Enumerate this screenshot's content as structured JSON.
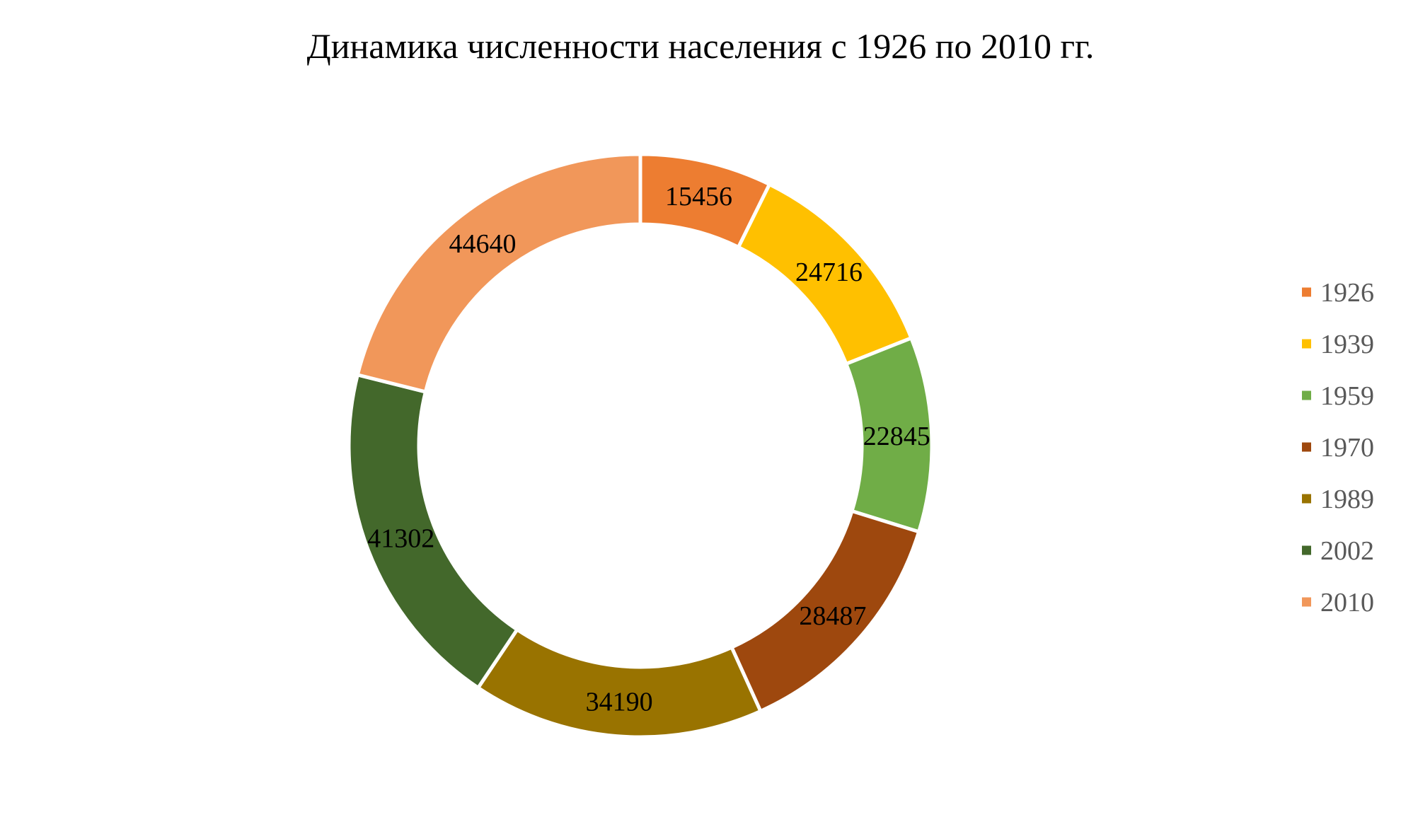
{
  "chart_data": {
    "type": "pie",
    "variant": "doughnut",
    "title": "Динамика численности населения с 1926 по 2010 гг.",
    "categories": [
      "1926",
      "1939",
      "1959",
      "1970",
      "1989",
      "2002",
      "2010"
    ],
    "values": [
      15456,
      24716,
      22845,
      28487,
      34190,
      41302,
      44640
    ],
    "colors": [
      "#ED7D31",
      "#FFC000",
      "#70AD47",
      "#9E480E",
      "#997300",
      "#43682B",
      "#F1975A"
    ],
    "data_labels": [
      "15456",
      "24716",
      "22845",
      "28487",
      "34190",
      "41302",
      "44640"
    ],
    "legend": {
      "position": "right",
      "entries": [
        "1926",
        "1939",
        "1959",
        "1970",
        "1989",
        "2002",
        "2010"
      ]
    }
  }
}
